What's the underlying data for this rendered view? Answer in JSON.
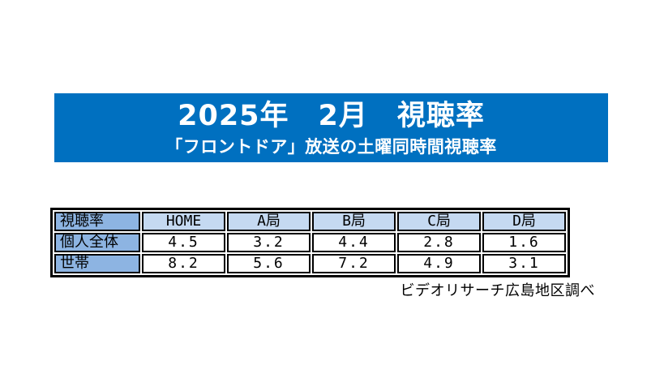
{
  "banner": {
    "title": "2025年　2月　視聴率",
    "subtitle": "「フロントドア」放送の土曜同時間視聴率",
    "background_color": "#0070C0",
    "text_color": "#FFFFFF"
  },
  "table": {
    "corner_label": "視聴率",
    "column_headers": [
      "HOME",
      "A局",
      "B局",
      "C局",
      "D局"
    ],
    "rows": [
      {
        "label": "個人全体",
        "values": [
          "4.5",
          "3.2",
          "4.4",
          "2.8",
          "1.6"
        ]
      },
      {
        "label": "世帯",
        "values": [
          "8.2",
          "5.6",
          "7.2",
          "4.9",
          "3.1"
        ]
      }
    ],
    "colors": {
      "row_header_bg": "#8DB4E2",
      "column_header_bg": "#C5D9F1",
      "cell_bg": "#FFFFFF",
      "border": "#000000"
    }
  },
  "footer": {
    "source_note": "ビデオリサーチ広島地区調べ"
  },
  "chart_data": {
    "type": "table",
    "title": "2025年　2月　視聴率",
    "subtitle": "「フロントドア」放送の土曜同時間視聴率",
    "categories": [
      "HOME",
      "A局",
      "B局",
      "C局",
      "D局"
    ],
    "series": [
      {
        "name": "個人全体",
        "values": [
          4.5,
          3.2,
          4.4,
          2.8,
          1.6
        ]
      },
      {
        "name": "世帯",
        "values": [
          8.2,
          5.6,
          7.2,
          4.9,
          3.1
        ]
      }
    ],
    "source": "ビデオリサーチ広島地区調べ"
  }
}
